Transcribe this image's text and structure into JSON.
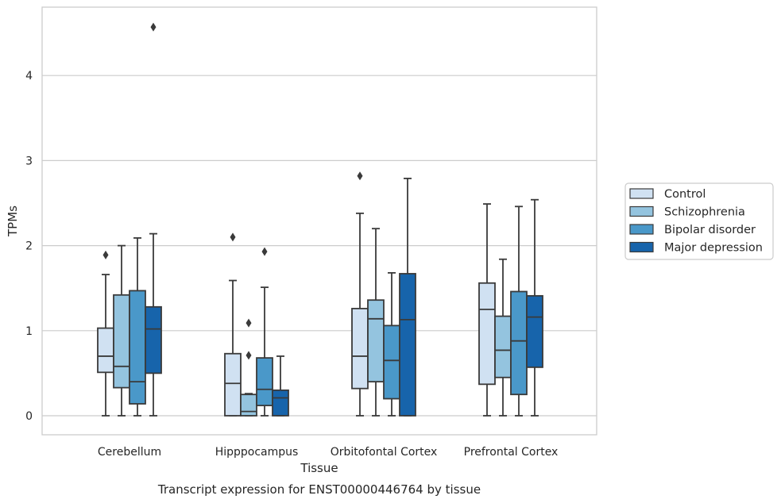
{
  "chart_data": {
    "type": "boxplot",
    "caption": "Transcript expression for ENST00000446764 by tissue",
    "xlabel": "Tissue",
    "ylabel": "TPMs",
    "ylim": [
      -0.22,
      4.8
    ],
    "yticks": [
      0,
      1,
      2,
      3,
      4
    ],
    "grid": true,
    "legend_position": "right",
    "categories": [
      "Cerebellum",
      "Hipppocampus",
      "Orbitofontal Cortex",
      "Prefrontal Cortex"
    ],
    "series": [
      {
        "name": "Control",
        "color": "#d0e1f2",
        "boxes": [
          {
            "whisker_low": 0,
            "q1": 0.51,
            "median": 0.7,
            "q3": 1.03,
            "whisker_high": 1.66,
            "outliers": [
              1.89
            ]
          },
          {
            "whisker_low": 0,
            "q1": 0,
            "median": 0.38,
            "q3": 0.73,
            "whisker_high": 1.59,
            "outliers": [
              2.1
            ]
          },
          {
            "whisker_low": 0,
            "q1": 0.32,
            "median": 0.7,
            "q3": 1.26,
            "whisker_high": 2.38,
            "outliers": [
              2.82
            ]
          },
          {
            "whisker_low": 0,
            "q1": 0.37,
            "median": 1.25,
            "q3": 1.56,
            "whisker_high": 2.49,
            "outliers": []
          }
        ]
      },
      {
        "name": "Schizophrenia",
        "color": "#94c4df",
        "boxes": [
          {
            "whisker_low": 0,
            "q1": 0.33,
            "median": 0.58,
            "q3": 1.42,
            "whisker_high": 2.0,
            "outliers": []
          },
          {
            "whisker_low": 0,
            "q1": 0,
            "median": 0.05,
            "q3": 0.25,
            "whisker_high": 0.26,
            "outliers": [
              0.71,
              1.09
            ]
          },
          {
            "whisker_low": 0,
            "q1": 0.4,
            "median": 1.14,
            "q3": 1.36,
            "whisker_high": 2.2,
            "outliers": []
          },
          {
            "whisker_low": 0,
            "q1": 0.45,
            "median": 0.77,
            "q3": 1.17,
            "whisker_high": 1.84,
            "outliers": []
          }
        ]
      },
      {
        "name": "Bipolar disorder",
        "color": "#4a98c9",
        "boxes": [
          {
            "whisker_low": 0,
            "q1": 0.14,
            "median": 0.4,
            "q3": 1.47,
            "whisker_high": 2.09,
            "outliers": []
          },
          {
            "whisker_low": 0,
            "q1": 0.12,
            "median": 0.31,
            "q3": 0.68,
            "whisker_high": 1.51,
            "outliers": [
              1.93
            ]
          },
          {
            "whisker_low": 0,
            "q1": 0.2,
            "median": 0.65,
            "q3": 1.06,
            "whisker_high": 1.68,
            "outliers": []
          },
          {
            "whisker_low": 0,
            "q1": 0.25,
            "median": 0.88,
            "q3": 1.46,
            "whisker_high": 2.46,
            "outliers": []
          }
        ]
      },
      {
        "name": "Major depression",
        "color": "#1764ab",
        "boxes": [
          {
            "whisker_low": 0,
            "q1": 0.5,
            "median": 1.02,
            "q3": 1.28,
            "whisker_high": 2.14,
            "outliers": [
              4.57
            ]
          },
          {
            "whisker_low": 0,
            "q1": 0,
            "median": 0.21,
            "q3": 0.3,
            "whisker_high": 0.7,
            "outliers": []
          },
          {
            "whisker_low": 0,
            "q1": 0,
            "median": 1.13,
            "q3": 1.67,
            "whisker_high": 2.79,
            "outliers": []
          },
          {
            "whisker_low": 0,
            "q1": 0.57,
            "median": 1.16,
            "q3": 1.41,
            "whisker_high": 2.54,
            "outliers": []
          }
        ]
      }
    ]
  }
}
